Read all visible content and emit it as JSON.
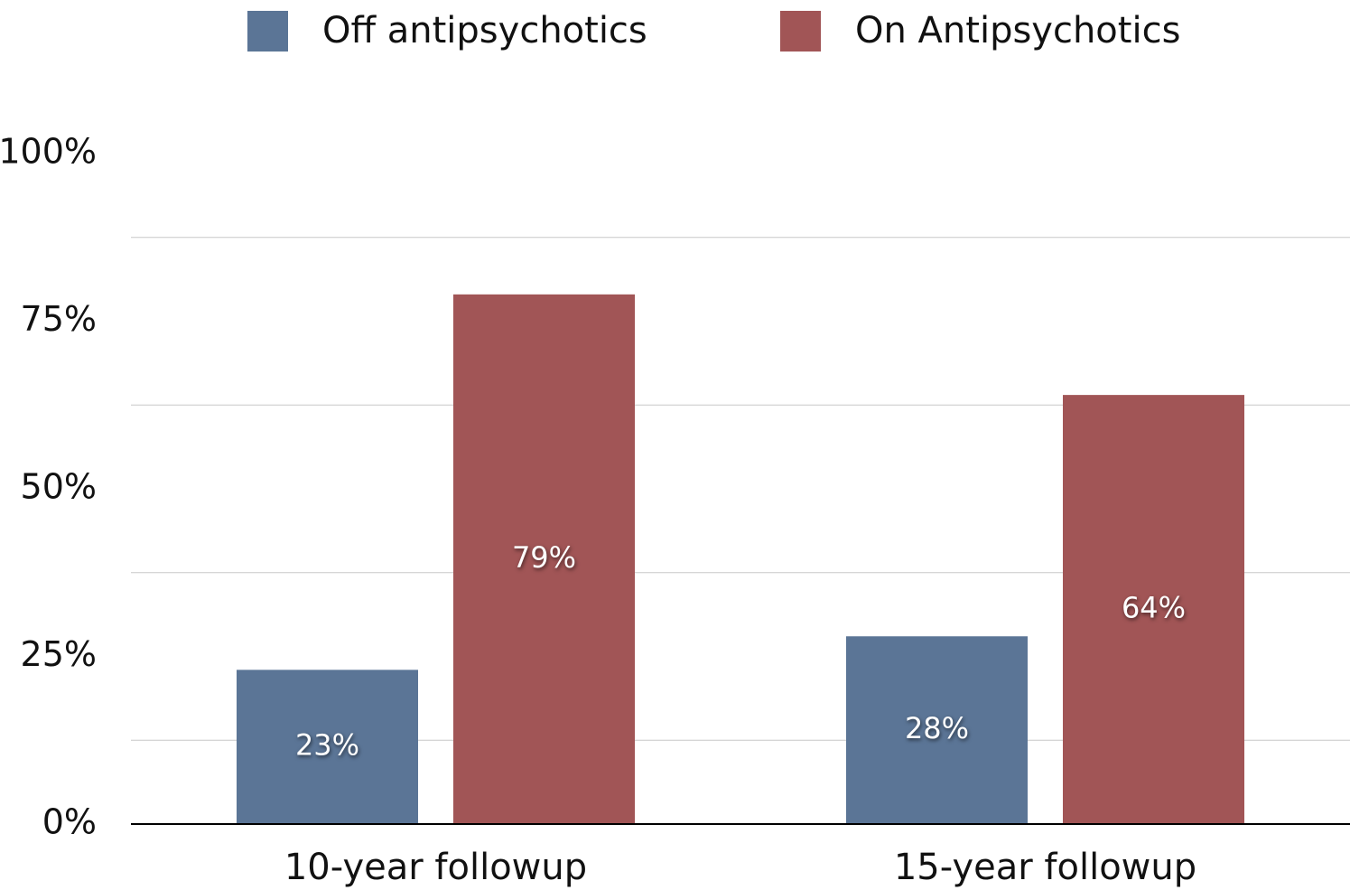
{
  "chart_data": {
    "type": "bar",
    "categories": [
      "10-year followup",
      "15-year followup"
    ],
    "series": [
      {
        "name": "Off antipsychotics",
        "color": "#5b7596",
        "values": [
          23,
          28
        ],
        "value_labels": [
          "23%",
          "28%"
        ]
      },
      {
        "name": "On Antipsychotics",
        "color": "#a15556",
        "values": [
          79,
          64
        ],
        "value_labels": [
          "79%",
          "64%"
        ]
      }
    ],
    "ylim": [
      0,
      100
    ],
    "yticks": [
      {
        "value": 0,
        "label": "0%"
      },
      {
        "value": 25,
        "label": "25%"
      },
      {
        "value": 50,
        "label": "50%"
      },
      {
        "value": 75,
        "label": "75%"
      },
      {
        "value": 100,
        "label": "100%"
      }
    ],
    "grid_lines": [
      12.5,
      37.5,
      62.5,
      87.5
    ],
    "legend": "top"
  }
}
